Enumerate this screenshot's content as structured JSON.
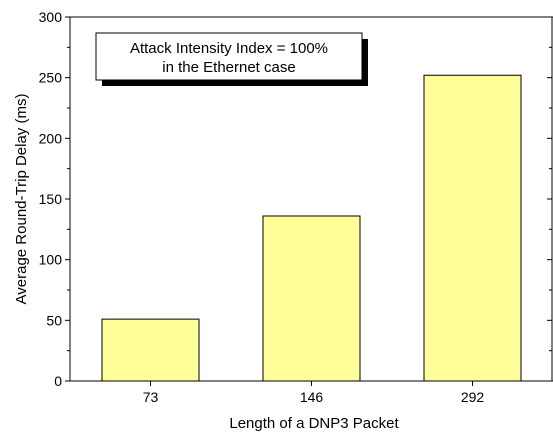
{
  "chart_data": {
    "type": "bar",
    "categories": [
      "73",
      "146",
      "292"
    ],
    "values": [
      51,
      136,
      252
    ],
    "xlabel": "Length of a DNP3 Packet",
    "ylabel": "Average Round-Trip Delay (ms)",
    "ylim": [
      0,
      300
    ],
    "yticks": [
      "0",
      "50",
      "100",
      "150",
      "200",
      "250",
      "300"
    ],
    "annotation": {
      "line1": "Attack Intensity Index = 100%",
      "line2": "in the Ethernet case",
      "placement": "top-left"
    },
    "colors": {
      "bar_fill": "#ffff99",
      "bar_stroke": "#000000",
      "axis": "#000000"
    },
    "grid": false,
    "legend": "none"
  }
}
